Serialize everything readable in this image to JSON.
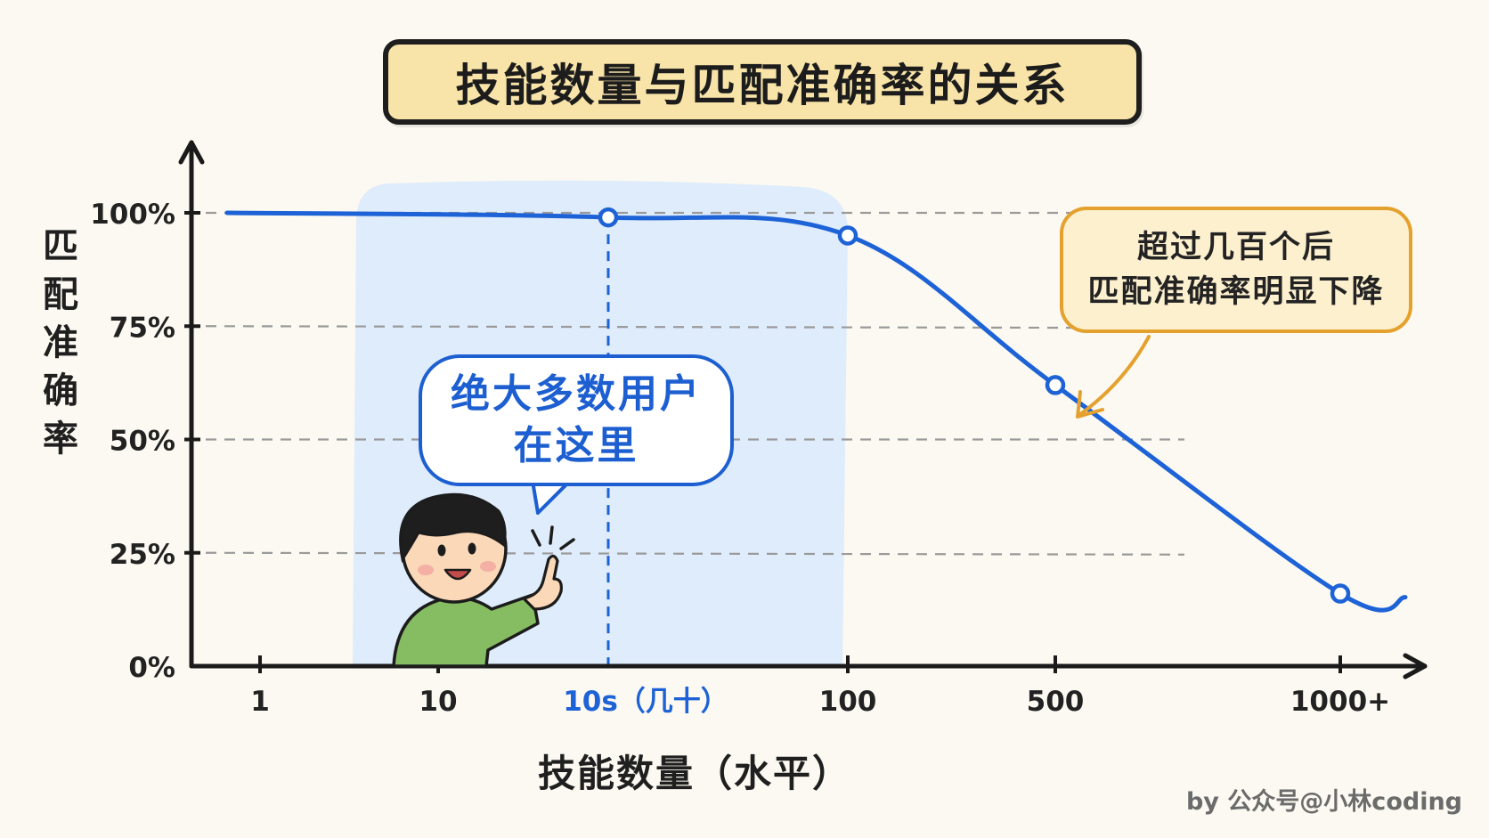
{
  "footer": {
    "credit": "by 公众号@小林coding"
  },
  "annotations": {
    "bubble_lines": [
      "绝大多数用户",
      "在这里"
    ],
    "note_lines": [
      "超过几百个后",
      "匹配准确率明显下降"
    ]
  },
  "chart_data": {
    "type": "line",
    "title": "技能数量与匹配准确率的关系",
    "xlabel": "技能数量（水平）",
    "ylabel": "匹配准确率",
    "x_ticks": [
      {
        "label": "1"
      },
      {
        "label": "10"
      },
      {
        "label": "10s（几十）",
        "highlight": true
      },
      {
        "label": "100"
      },
      {
        "label": "500"
      },
      {
        "label": "1000+"
      }
    ],
    "y_ticks": [
      "0%",
      "25%",
      "50%",
      "75%",
      "100%"
    ],
    "ylim": [
      0,
      100
    ],
    "series": [
      {
        "color": "#1d62d6",
        "points": [
          {
            "x": "1",
            "y": 100
          },
          {
            "x": "10",
            "y": 100
          },
          {
            "x": "10s（几十）",
            "y": 99,
            "marker": true
          },
          {
            "x": "100",
            "y": 95,
            "marker": true
          },
          {
            "x": "500",
            "y": 62,
            "marker": true
          },
          {
            "x": "1000+",
            "y": 16,
            "marker": true
          }
        ]
      }
    ],
    "highlight_region": {
      "from": "10",
      "to": "100"
    },
    "grid": "dashed horizontal",
    "colors": {
      "line": "#1d62d6",
      "highlight": "#dcebfb",
      "axis": "#1a1a1a",
      "grid": "#9a9a9a",
      "note_border": "#e5a12e"
    }
  }
}
